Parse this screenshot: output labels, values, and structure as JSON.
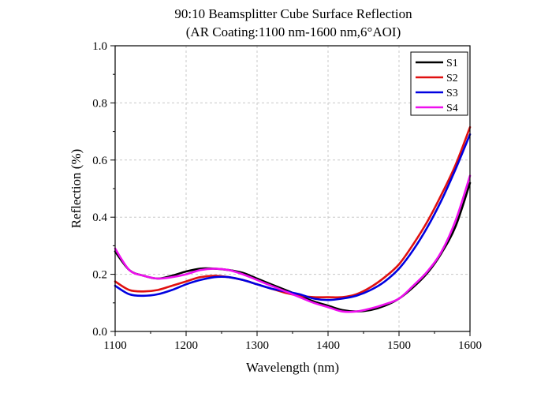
{
  "chart_data": {
    "type": "line",
    "title": "90:10 Beamsplitter Cube Surface Reflection",
    "subtitle": "(AR Coating:1100 nm-1600 nm,6°AOI)",
    "xlabel": "Wavelength (nm)",
    "ylabel": "Reflection (%)",
    "xlim": [
      1100,
      1600
    ],
    "ylim": [
      0.0,
      1.0
    ],
    "x_ticks": [
      1100,
      1200,
      1300,
      1400,
      1500,
      1600
    ],
    "x_tick_labels": [
      "1100",
      "1200",
      "1300",
      "1400",
      "1500",
      "1600"
    ],
    "y_ticks": [
      0.0,
      0.2,
      0.4,
      0.6,
      0.8,
      1.0
    ],
    "y_tick_labels": [
      "0.0",
      "0.2",
      "0.4",
      "0.6",
      "0.8",
      "1.0"
    ],
    "grid": true,
    "legend_position": "top-right",
    "x": [
      1100,
      1120,
      1140,
      1160,
      1180,
      1200,
      1220,
      1240,
      1260,
      1280,
      1300,
      1320,
      1340,
      1360,
      1380,
      1400,
      1420,
      1440,
      1460,
      1480,
      1500,
      1520,
      1540,
      1560,
      1580,
      1600
    ],
    "series": [
      {
        "name": "S1",
        "color": "#000000",
        "values": [
          0.28,
          0.215,
          0.195,
          0.185,
          0.195,
          0.21,
          0.22,
          0.22,
          0.215,
          0.205,
          0.185,
          0.165,
          0.145,
          0.125,
          0.105,
          0.09,
          0.075,
          0.07,
          0.075,
          0.09,
          0.115,
          0.155,
          0.205,
          0.275,
          0.37,
          0.52
        ]
      },
      {
        "name": "S2",
        "color": "#e01010",
        "values": [
          0.175,
          0.145,
          0.14,
          0.145,
          0.16,
          0.175,
          0.19,
          0.195,
          0.19,
          0.18,
          0.165,
          0.15,
          0.135,
          0.125,
          0.12,
          0.12,
          0.12,
          0.13,
          0.155,
          0.19,
          0.235,
          0.305,
          0.385,
          0.48,
          0.585,
          0.715
        ]
      },
      {
        "name": "S3",
        "color": "#0000e0",
        "values": [
          0.16,
          0.13,
          0.125,
          0.13,
          0.145,
          0.165,
          0.18,
          0.19,
          0.19,
          0.18,
          0.165,
          0.15,
          0.14,
          0.13,
          0.115,
          0.11,
          0.115,
          0.125,
          0.145,
          0.175,
          0.22,
          0.285,
          0.365,
          0.46,
          0.57,
          0.69
        ]
      },
      {
        "name": "S4",
        "color": "#ee10ee",
        "values": [
          0.29,
          0.215,
          0.195,
          0.185,
          0.19,
          0.2,
          0.215,
          0.22,
          0.215,
          0.2,
          0.18,
          0.16,
          0.14,
          0.12,
          0.1,
          0.085,
          0.07,
          0.07,
          0.08,
          0.095,
          0.115,
          0.16,
          0.21,
          0.28,
          0.39,
          0.545
        ]
      }
    ]
  }
}
